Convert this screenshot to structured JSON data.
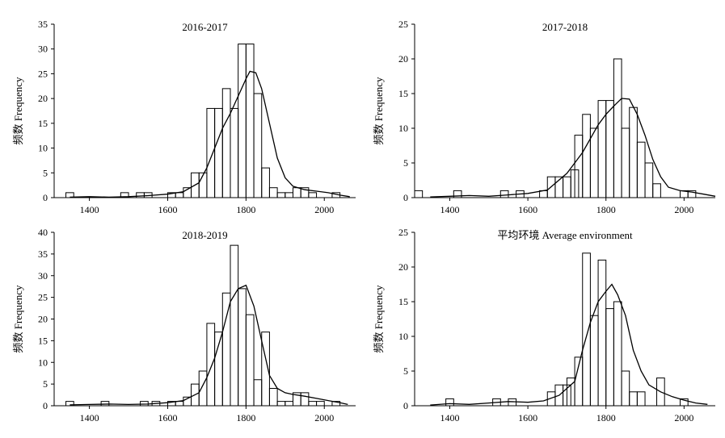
{
  "chart_data": [
    {
      "type": "bar",
      "title": "2016-2017",
      "xlabel": "",
      "ylabel": "频数 Frequency",
      "xlim": [
        1310,
        2080
      ],
      "ylim": [
        0,
        35
      ],
      "bin_width": 20,
      "xticks": [
        1400,
        1600,
        1800,
        2000
      ],
      "yticks": [
        0,
        5,
        10,
        15,
        20,
        25,
        30,
        35
      ],
      "bins": [
        [
          1340,
          1
        ],
        [
          1480,
          1
        ],
        [
          1520,
          1
        ],
        [
          1540,
          1
        ],
        [
          1600,
          1
        ],
        [
          1620,
          1
        ],
        [
          1640,
          2
        ],
        [
          1660,
          5
        ],
        [
          1680,
          5
        ],
        [
          1700,
          18
        ],
        [
          1720,
          18
        ],
        [
          1740,
          22
        ],
        [
          1760,
          18
        ],
        [
          1780,
          31
        ],
        [
          1800,
          31
        ],
        [
          1820,
          21
        ],
        [
          1840,
          6
        ],
        [
          1860,
          2
        ],
        [
          1880,
          1
        ],
        [
          1900,
          1
        ],
        [
          1920,
          2
        ],
        [
          1940,
          2
        ],
        [
          1960,
          1
        ],
        [
          2020,
          1
        ]
      ],
      "curve": [
        [
          1350,
          0.1
        ],
        [
          1400,
          0.2
        ],
        [
          1450,
          0.1
        ],
        [
          1500,
          0.2
        ],
        [
          1550,
          0.4
        ],
        [
          1600,
          0.7
        ],
        [
          1640,
          1.2
        ],
        [
          1680,
          3
        ],
        [
          1700,
          6
        ],
        [
          1720,
          10
        ],
        [
          1740,
          14
        ],
        [
          1760,
          17
        ],
        [
          1780,
          20.5
        ],
        [
          1800,
          24
        ],
        [
          1810,
          25.5
        ],
        [
          1825,
          25.2
        ],
        [
          1840,
          22
        ],
        [
          1860,
          15
        ],
        [
          1880,
          8
        ],
        [
          1900,
          4
        ],
        [
          1920,
          2.3
        ],
        [
          1950,
          1.6
        ],
        [
          1980,
          1.3
        ],
        [
          2010,
          1
        ],
        [
          2040,
          0.5
        ],
        [
          2065,
          0.2
        ]
      ]
    },
    {
      "type": "bar",
      "title": "2017-2018",
      "xlabel": "",
      "ylabel": "频数 Frequency",
      "xlim": [
        1310,
        2080
      ],
      "ylim": [
        0,
        25
      ],
      "bin_width": 20,
      "xticks": [
        1400,
        1600,
        1800,
        2000
      ],
      "yticks": [
        0,
        5,
        10,
        15,
        20,
        25
      ],
      "bins": [
        [
          1310,
          1
        ],
        [
          1410,
          1
        ],
        [
          1530,
          1
        ],
        [
          1570,
          1
        ],
        [
          1630,
          1
        ],
        [
          1650,
          3
        ],
        [
          1670,
          3
        ],
        [
          1690,
          3
        ],
        [
          1710,
          4
        ],
        [
          1720,
          9
        ],
        [
          1740,
          12
        ],
        [
          1760,
          10
        ],
        [
          1780,
          14
        ],
        [
          1800,
          14
        ],
        [
          1820,
          20
        ],
        [
          1840,
          10
        ],
        [
          1860,
          13
        ],
        [
          1880,
          8
        ],
        [
          1900,
          5
        ],
        [
          1920,
          2
        ],
        [
          1990,
          1
        ],
        [
          2010,
          1
        ]
      ],
      "curve": [
        [
          1350,
          0.1
        ],
        [
          1400,
          0.2
        ],
        [
          1450,
          0.3
        ],
        [
          1500,
          0.2
        ],
        [
          1550,
          0.4
        ],
        [
          1600,
          0.6
        ],
        [
          1650,
          1.1
        ],
        [
          1700,
          3.5
        ],
        [
          1720,
          5
        ],
        [
          1740,
          6.5
        ],
        [
          1760,
          8.5
        ],
        [
          1780,
          10.5
        ],
        [
          1800,
          12
        ],
        [
          1820,
          13.2
        ],
        [
          1840,
          14.3
        ],
        [
          1860,
          14.2
        ],
        [
          1880,
          12
        ],
        [
          1900,
          9
        ],
        [
          1920,
          5.5
        ],
        [
          1940,
          3
        ],
        [
          1960,
          1.5
        ],
        [
          1990,
          1
        ],
        [
          2020,
          0.8
        ],
        [
          2050,
          0.5
        ],
        [
          2080,
          0.2
        ]
      ]
    },
    {
      "type": "bar",
      "title": "2018-2019",
      "xlabel": "",
      "ylabel": "频数 Frequency",
      "xlim": [
        1310,
        2080
      ],
      "ylim": [
        0,
        40
      ],
      "bin_width": 20,
      "xticks": [
        1400,
        1600,
        1800,
        2000
      ],
      "yticks": [
        0,
        5,
        10,
        15,
        20,
        25,
        30,
        35,
        40
      ],
      "bins": [
        [
          1340,
          1
        ],
        [
          1430,
          1
        ],
        [
          1530,
          1
        ],
        [
          1560,
          1
        ],
        [
          1600,
          1
        ],
        [
          1620,
          1
        ],
        [
          1640,
          2
        ],
        [
          1660,
          5
        ],
        [
          1680,
          8
        ],
        [
          1700,
          19
        ],
        [
          1720,
          17
        ],
        [
          1740,
          26
        ],
        [
          1760,
          37
        ],
        [
          1780,
          27
        ],
        [
          1800,
          21
        ],
        [
          1820,
          6
        ],
        [
          1840,
          17
        ],
        [
          1860,
          4
        ],
        [
          1880,
          1
        ],
        [
          1900,
          1
        ],
        [
          1920,
          3
        ],
        [
          1940,
          3
        ],
        [
          1960,
          1
        ],
        [
          1980,
          1
        ],
        [
          2020,
          1
        ]
      ],
      "curve": [
        [
          1350,
          0.2
        ],
        [
          1400,
          0.3
        ],
        [
          1450,
          0.4
        ],
        [
          1500,
          0.3
        ],
        [
          1550,
          0.4
        ],
        [
          1600,
          0.7
        ],
        [
          1640,
          1.2
        ],
        [
          1680,
          3
        ],
        [
          1700,
          6.5
        ],
        [
          1720,
          11
        ],
        [
          1740,
          17
        ],
        [
          1760,
          24
        ],
        [
          1780,
          27
        ],
        [
          1800,
          27.8
        ],
        [
          1820,
          23
        ],
        [
          1840,
          15
        ],
        [
          1860,
          7
        ],
        [
          1880,
          4
        ],
        [
          1900,
          3
        ],
        [
          1920,
          2.6
        ],
        [
          1950,
          2.2
        ],
        [
          1980,
          1.7
        ],
        [
          2010,
          1.2
        ],
        [
          2040,
          0.7
        ],
        [
          2060,
          0.3
        ]
      ]
    },
    {
      "type": "bar",
      "title": "平均环境 Average environment",
      "xlabel": "",
      "ylabel": "频数 Frequency",
      "xlim": [
        1310,
        2080
      ],
      "ylim": [
        0,
        25
      ],
      "bin_width": 20,
      "xticks": [
        1400,
        1600,
        1800,
        2000
      ],
      "yticks": [
        0,
        5,
        10,
        15,
        20,
        25
      ],
      "bins": [
        [
          1390,
          1
        ],
        [
          1510,
          1
        ],
        [
          1550,
          1
        ],
        [
          1650,
          2
        ],
        [
          1670,
          3
        ],
        [
          1690,
          3
        ],
        [
          1700,
          4
        ],
        [
          1720,
          7
        ],
        [
          1740,
          22
        ],
        [
          1760,
          13
        ],
        [
          1780,
          21
        ],
        [
          1800,
          14
        ],
        [
          1820,
          15
        ],
        [
          1840,
          5
        ],
        [
          1860,
          2
        ],
        [
          1880,
          2
        ],
        [
          1930,
          4
        ],
        [
          1990,
          1
        ]
      ],
      "curve": [
        [
          1350,
          0.1
        ],
        [
          1400,
          0.3
        ],
        [
          1450,
          0.2
        ],
        [
          1500,
          0.4
        ],
        [
          1550,
          0.6
        ],
        [
          1600,
          0.5
        ],
        [
          1640,
          0.7
        ],
        [
          1680,
          1.5
        ],
        [
          1720,
          3.5
        ],
        [
          1740,
          8
        ],
        [
          1760,
          12
        ],
        [
          1780,
          15
        ],
        [
          1800,
          16.5
        ],
        [
          1815,
          17.5
        ],
        [
          1830,
          16
        ],
        [
          1850,
          13
        ],
        [
          1870,
          8
        ],
        [
          1890,
          5
        ],
        [
          1910,
          3
        ],
        [
          1940,
          2
        ],
        [
          1970,
          1.3
        ],
        [
          2000,
          0.8
        ],
        [
          2030,
          0.4
        ],
        [
          2060,
          0.2
        ]
      ]
    }
  ]
}
